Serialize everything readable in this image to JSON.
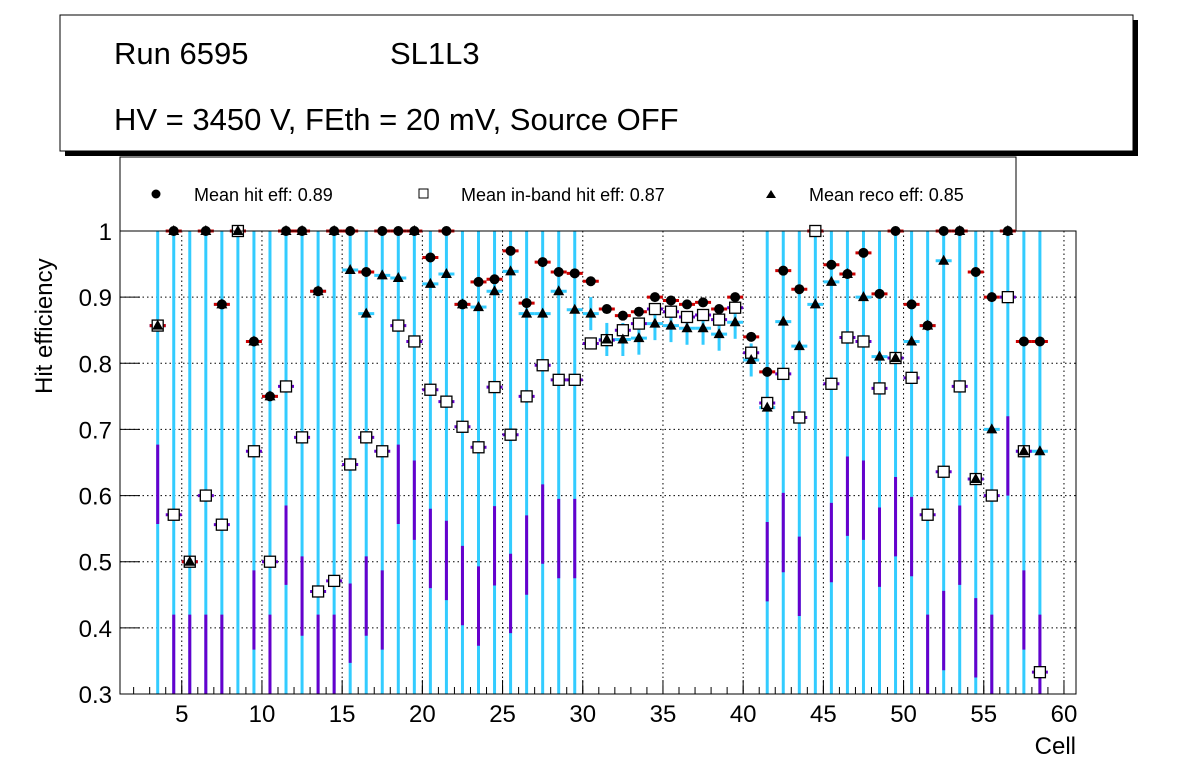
{
  "title_box": {
    "run": "Run 6595",
    "layer": "SL1L3",
    "conditions": "HV = 3450 V, FEth = 20 mV, Source OFF"
  },
  "chart_data": {
    "type": "scatter",
    "title": "",
    "xlabel": "Cell",
    "ylabel": "Hit efficiency",
    "xlim": [
      1.15,
      60.75
    ],
    "ylim": [
      0.3,
      1.0
    ],
    "grid": true,
    "legend_position": "top",
    "xticks": [
      "5",
      "10",
      "15",
      "20",
      "25",
      "30",
      "35",
      "40",
      "45",
      "50",
      "55",
      "60"
    ],
    "yticks": [
      "0.3",
      "0.4",
      "0.5",
      "0.6",
      "0.7",
      "0.8",
      "0.9",
      "1"
    ],
    "x": [
      3.5,
      4.5,
      5.5,
      6.5,
      7.5,
      8.5,
      9.5,
      10.5,
      11.5,
      12.5,
      13.5,
      14.5,
      15.5,
      16.5,
      17.5,
      18.5,
      19.5,
      20.5,
      21.5,
      22.5,
      23.5,
      24.5,
      25.5,
      26.5,
      27.5,
      28.5,
      29.5,
      30.5,
      31.5,
      32.5,
      33.5,
      34.5,
      35.5,
      36.5,
      37.5,
      38.5,
      39.5,
      40.5,
      41.5,
      42.5,
      43.5,
      44.5,
      45.5,
      46.5,
      47.5,
      48.5,
      49.5,
      50.5,
      51.5,
      52.5,
      53.5,
      54.5,
      55.5,
      56.5,
      57.5,
      58.5
    ],
    "series": [
      {
        "name": "Mean hit  eff: 0.89",
        "marker": "circle",
        "color": "#000000",
        "err_color": "#cc0000",
        "values": [
          0.857,
          1,
          0.5,
          1,
          0.889,
          1,
          0.833,
          0.75,
          1,
          1,
          0.909,
          1,
          1,
          0.938,
          1,
          1,
          1,
          0.96,
          1,
          0.889,
          0.923,
          0.927,
          0.97,
          0.891,
          0.953,
          0.938,
          0.936,
          0.924,
          0.882,
          0.872,
          0.878,
          0.9,
          0.895,
          0.889,
          0.892,
          0.882,
          0.9,
          0.84,
          0.787,
          0.94,
          0.912,
          1,
          0.949,
          0.935,
          0.967,
          0.905,
          1,
          0.889,
          0.857,
          1,
          1,
          0.938,
          0.9,
          1,
          0.833,
          0.833
        ]
      },
      {
        "name": "Mean in-band hit eff: 0.87",
        "marker": "open-square",
        "color": "#000000",
        "err_color": "#6600cc",
        "values": [
          0.857,
          0.571,
          0.5,
          0.6,
          0.556,
          1,
          0.667,
          0.5,
          0.765,
          0.688,
          0.455,
          0.471,
          0.647,
          0.688,
          0.667,
          0.857,
          0.833,
          0.76,
          0.742,
          0.704,
          0.673,
          0.764,
          0.692,
          0.75,
          0.797,
          0.775,
          0.775,
          0.83,
          0.835,
          0.85,
          0.86,
          0.882,
          0.878,
          0.87,
          0.873,
          0.866,
          0.884,
          0.816,
          0.74,
          0.784,
          0.718,
          1,
          0.769,
          0.839,
          0.833,
          0.762,
          0.808,
          0.778,
          0.571,
          0.636,
          0.765,
          0.625,
          0.6,
          0.9,
          0.667,
          0.333
        ]
      },
      {
        "name": "Mean reco eff: 0.85",
        "marker": "triangle",
        "color": "#000000",
        "err_color": "#33ccff",
        "values": [
          0.857,
          1,
          0.5,
          1,
          0.889,
          1,
          0.833,
          0.75,
          1,
          1,
          0.909,
          1,
          0.941,
          0.875,
          0.933,
          0.929,
          1,
          0.92,
          0.935,
          0.889,
          0.885,
          0.909,
          0.939,
          0.875,
          0.875,
          0.909,
          0.881,
          0.875,
          0.836,
          0.836,
          0.838,
          0.86,
          0.857,
          0.853,
          0.853,
          0.844,
          0.862,
          0.805,
          0.733,
          0.863,
          0.826,
          0.889,
          0.923,
          0.935,
          0.9,
          0.81,
          0.808,
          0.833,
          0.857,
          0.955,
          1,
          0.625,
          0.7,
          1,
          0.667,
          0.667
        ]
      }
    ]
  }
}
